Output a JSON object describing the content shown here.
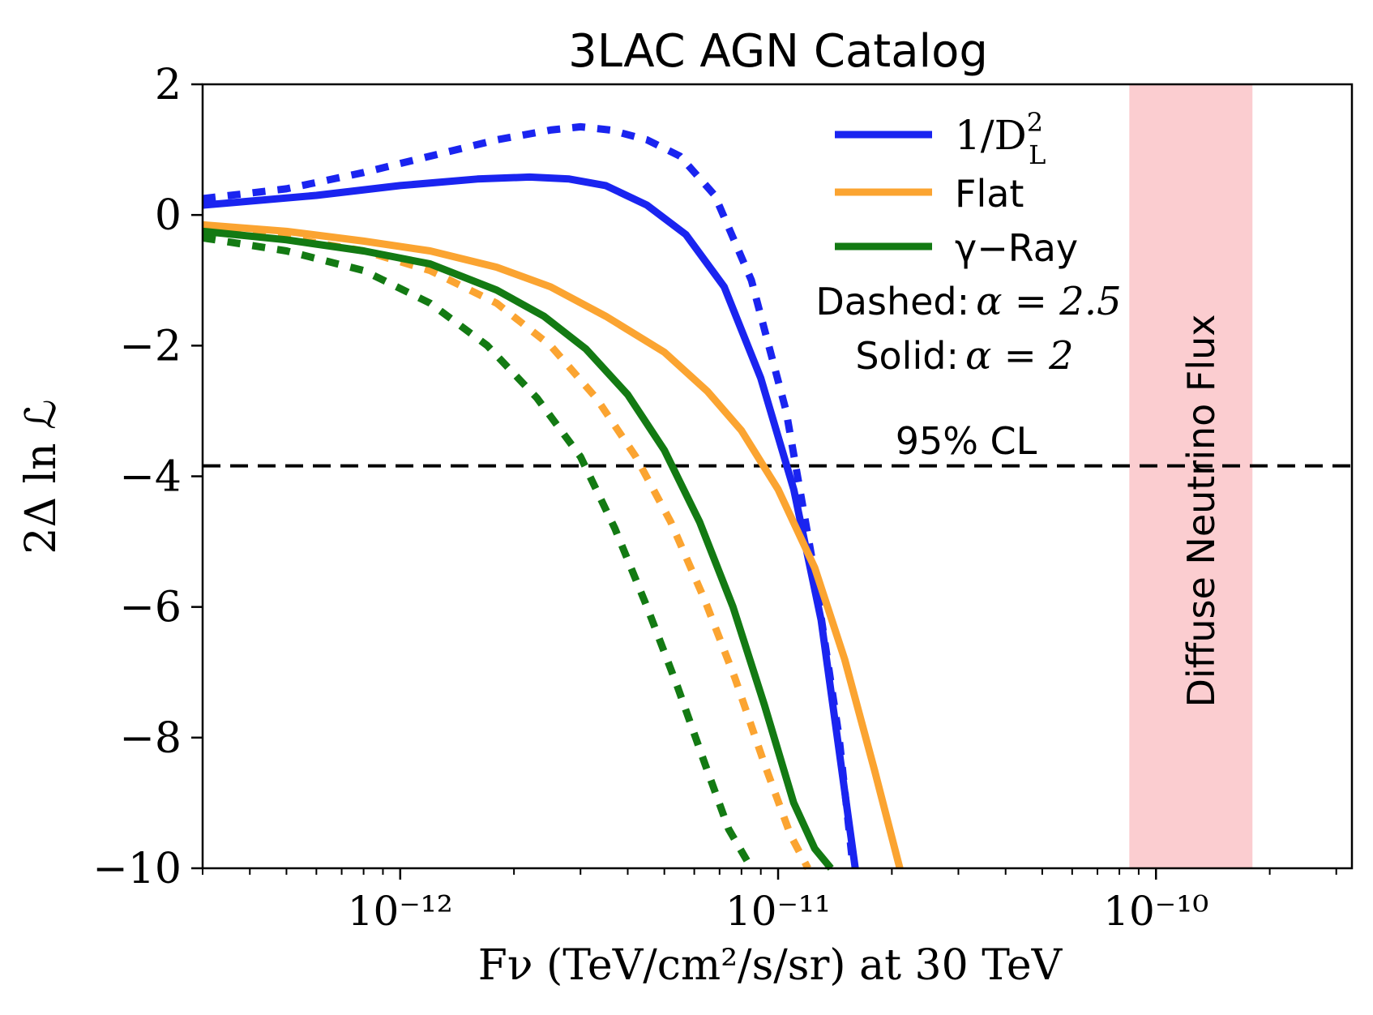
{
  "chart_data": {
    "type": "line",
    "title": "3LAC AGN Catalog",
    "xlabel": "Fν (TeV/cm²/s/sr) at 30 TeV",
    "ylabel": "2Δ ln ℒ",
    "xscale": "log",
    "xlim": [
      3e-13,
      3.3e-10
    ],
    "ylim": [
      -10,
      2
    ],
    "x_ticks": [
      {
        "value": 1e-12,
        "label": "10⁻¹²"
      },
      {
        "value": 1e-11,
        "label": "10⁻¹¹"
      },
      {
        "value": 1e-10,
        "label": "10⁻¹⁰"
      }
    ],
    "y_ticks": [
      {
        "value": 2,
        "label": "2"
      },
      {
        "value": 0,
        "label": "0"
      },
      {
        "value": -2,
        "label": "−2"
      },
      {
        "value": -4,
        "label": "−4"
      },
      {
        "value": -6,
        "label": "−6"
      },
      {
        "value": -8,
        "label": "−8"
      },
      {
        "value": -10,
        "label": "−10"
      }
    ],
    "grid": false,
    "legend": {
      "placement": "top-right",
      "entries": [
        {
          "label": "1/D²ʟ",
          "label_main": "1/D",
          "label_sup": "2",
          "label_sub": "L",
          "color": "#1a24f0"
        },
        {
          "label": "Flat",
          "color": "#fba431"
        },
        {
          "label": "γ−Ray",
          "color": "#137a13"
        }
      ],
      "notes": [
        {
          "prefix": "Dashed:",
          "math": "α = 2.5"
        },
        {
          "prefix": "Solid:",
          "math": "α = 2"
        }
      ]
    },
    "series": [
      {
        "weighting": "1/D_L^2",
        "style": "solid",
        "color": "#1a24f0",
        "x": [
          3e-13,
          6e-13,
          1e-12,
          1.6e-12,
          2.2e-12,
          2.8e-12,
          3.5e-12,
          4.5e-12,
          5.7e-12,
          7.2e-12,
          9e-12,
          1.1e-11,
          1.3e-11,
          1.45e-11,
          1.6e-11
        ],
        "values": [
          0.15,
          0.3,
          0.45,
          0.55,
          0.58,
          0.55,
          0.45,
          0.15,
          -0.3,
          -1.1,
          -2.5,
          -4.2,
          -6.2,
          -8.2,
          -10
        ]
      },
      {
        "weighting": "1/D_L^2",
        "style": "dashed",
        "color": "#1a24f0",
        "x": [
          3e-13,
          5e-13,
          8e-13,
          1.2e-12,
          1.8e-12,
          2.5e-12,
          3e-12,
          3.6e-12,
          4.5e-12,
          5.5e-12,
          6.8e-12,
          8.5e-12,
          1.05e-11,
          1.25e-11,
          1.45e-11,
          1.58e-11
        ],
        "values": [
          0.25,
          0.4,
          0.65,
          0.9,
          1.15,
          1.3,
          1.35,
          1.3,
          1.15,
          0.9,
          0.3,
          -1,
          -3,
          -5.5,
          -8,
          -10
        ]
      },
      {
        "weighting": "Flat",
        "style": "solid",
        "color": "#fba431",
        "x": [
          3e-13,
          5e-13,
          8e-13,
          1.2e-12,
          1.8e-12,
          2.5e-12,
          3.5e-12,
          5e-12,
          6.5e-12,
          8e-12,
          1e-11,
          1.25e-11,
          1.5e-11,
          1.8e-11,
          2.1e-11
        ],
        "values": [
          -0.15,
          -0.25,
          -0.4,
          -0.55,
          -0.8,
          -1.1,
          -1.55,
          -2.1,
          -2.7,
          -3.3,
          -4.2,
          -5.4,
          -6.8,
          -8.5,
          -10
        ]
      },
      {
        "weighting": "Flat",
        "style": "dashed",
        "color": "#fba431",
        "x": [
          3e-13,
          5e-13,
          8e-13,
          1.2e-12,
          1.8e-12,
          2.5e-12,
          3.3e-12,
          4.2e-12,
          5.2e-12,
          6.4e-12,
          7.7e-12,
          9.2e-12,
          1.08e-11,
          1.2e-11
        ],
        "values": [
          -0.25,
          -0.35,
          -0.55,
          -0.85,
          -1.35,
          -2,
          -2.8,
          -3.7,
          -4.7,
          -5.9,
          -7.1,
          -8.4,
          -9.5,
          -10
        ]
      },
      {
        "weighting": "γ−Ray",
        "style": "solid",
        "color": "#137a13",
        "x": [
          3e-13,
          5e-13,
          8e-13,
          1.2e-12,
          1.8e-12,
          2.4e-12,
          3.1e-12,
          4e-12,
          5e-12,
          6.2e-12,
          7.6e-12,
          9.2e-12,
          1.1e-11,
          1.25e-11,
          1.38e-11
        ],
        "values": [
          -0.25,
          -0.38,
          -0.55,
          -0.75,
          -1.15,
          -1.55,
          -2.05,
          -2.75,
          -3.6,
          -4.7,
          -6,
          -7.5,
          -9,
          -9.7,
          -10
        ]
      },
      {
        "weighting": "γ−Ray",
        "style": "dashed",
        "color": "#137a13",
        "x": [
          3e-13,
          5e-13,
          8e-13,
          1.2e-12,
          1.7e-12,
          2.3e-12,
          3e-12,
          3.7e-12,
          4.5e-12,
          5.4e-12,
          6.4e-12,
          7.4e-12,
          8.5e-12
        ],
        "values": [
          -0.35,
          -0.55,
          -0.85,
          -1.35,
          -2,
          -2.8,
          -3.7,
          -4.8,
          -6,
          -7.2,
          -8.4,
          -9.4,
          -10
        ]
      }
    ],
    "reference_line": {
      "y": -3.84,
      "style": "dashed",
      "color": "#000000",
      "label": "95% CL"
    },
    "band": {
      "x_range": [
        8.5e-11,
        1.8e-10
      ],
      "color": "#fbcdd0",
      "label": "Diffuse Neutrino Flux"
    }
  }
}
